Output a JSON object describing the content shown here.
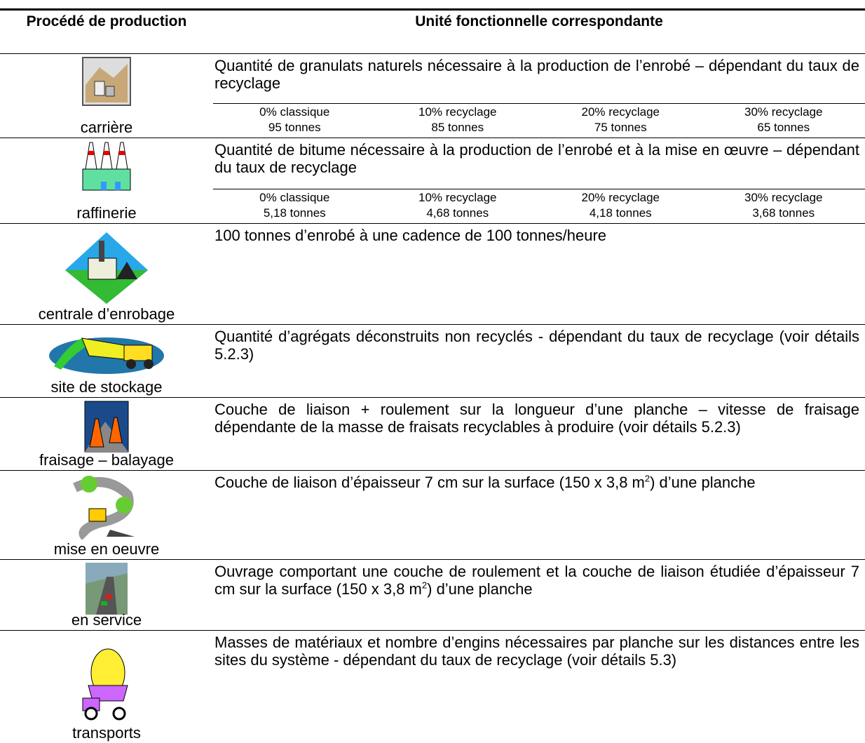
{
  "header": {
    "col1": "Procédé de production",
    "col2": "Unité fonctionnelle correspondante"
  },
  "rows": [
    {
      "label": "carrière",
      "description": [
        "Quantité de granulats naturels nécessaire à la production de l’enrobé – dépendant du taux de recyclage"
      ],
      "options": [
        {
          "rate": "0% classique",
          "amount": "95 tonnes"
        },
        {
          "rate": "10% recyclage",
          "amount": "85 tonnes"
        },
        {
          "rate": "20% recyclage",
          "amount": "75 tonnes"
        },
        {
          "rate": "30% recyclage",
          "amount": "65 tonnes"
        }
      ]
    },
    {
      "label": "raffinerie",
      "description": [
        "Quantité de bitume nécessaire à la production de l’enrobé et à la mise en œuvre – dépendant du taux de recyclage"
      ],
      "options": [
        {
          "rate": "0% classique",
          "amount": "5,18 tonnes"
        },
        {
          "rate": "10% recyclage",
          "amount": "4,68 tonnes"
        },
        {
          "rate": "20% recyclage",
          "amount": "4,18 tonnes"
        },
        {
          "rate": "30% recyclage",
          "amount": "3,68 tonnes"
        }
      ]
    },
    {
      "label": "centrale d’enrobage",
      "description": [
        "100 tonnes d’enrobé à une cadence de 100 tonnes/heure"
      ]
    },
    {
      "label": "site de stockage",
      "description": [
        "Quantité d’agrégats déconstruits non recyclés - dépendant du taux de recyclage (voir détails 5.2.3)"
      ]
    },
    {
      "label": "fraisage – balayage",
      "description": [
        "Couche de liaison + roulement sur la longueur d’une planche – vitesse de fraisage dépendante de la masse de fraisats recyclables à produire (voir détails 5.2.3)"
      ]
    },
    {
      "label": "mise en oeuvre",
      "description": [
        "Couche de liaison d’épaisseur 7 cm sur la surface (150 x 3,8 m",
        "2",
        ") d’une planche"
      ]
    },
    {
      "label": "en service",
      "description": [
        "Ouvrage comportant une couche de roulement et la couche de liaison étudiée d’épaisseur 7 cm sur la surface (150 x 3,8 m",
        "2",
        ") d’une planche"
      ]
    },
    {
      "label": "transports",
      "description": [
        "Masses de matériaux et nombre d’engins nécessaires par planche sur les distances entre les sites du système - dépendant du taux de recyclage (voir détails 5.3)"
      ]
    }
  ]
}
